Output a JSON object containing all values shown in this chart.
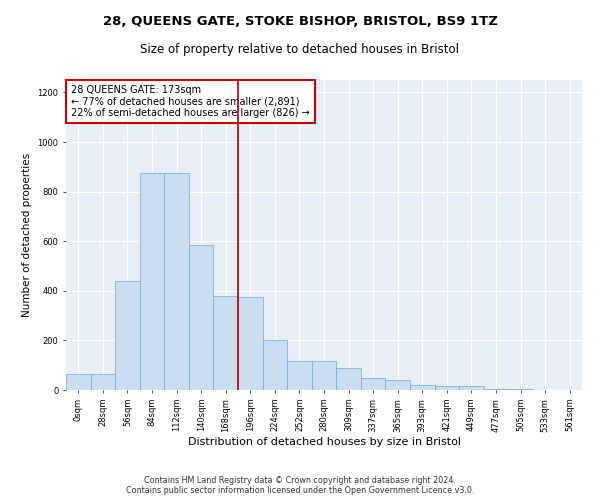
{
  "title": "28, QUEENS GATE, STOKE BISHOP, BRISTOL, BS9 1TZ",
  "subtitle": "Size of property relative to detached houses in Bristol",
  "xlabel": "Distribution of detached houses by size in Bristol",
  "ylabel": "Number of detached properties",
  "categories": [
    "0sqm",
    "28sqm",
    "56sqm",
    "84sqm",
    "112sqm",
    "140sqm",
    "168sqm",
    "196sqm",
    "224sqm",
    "252sqm",
    "280sqm",
    "309sqm",
    "337sqm",
    "365sqm",
    "393sqm",
    "421sqm",
    "449sqm",
    "477sqm",
    "505sqm",
    "533sqm",
    "561sqm"
  ],
  "values": [
    65,
    65,
    440,
    875,
    875,
    585,
    380,
    375,
    200,
    115,
    115,
    90,
    50,
    40,
    20,
    15,
    15,
    5,
    3,
    2,
    1
  ],
  "bar_color": "#ccddf0",
  "bar_edge_color": "#6aaad4",
  "bar_width": 1.0,
  "vline_x": 6.5,
  "vline_color": "#aa0000",
  "annotation_text": "28 QUEENS GATE: 173sqm\n← 77% of detached houses are smaller (2,891)\n22% of semi-detached houses are larger (826) →",
  "annotation_box_color": "#ffffff",
  "annotation_box_edge": "#cc0000",
  "ylim": [
    0,
    1250
  ],
  "yticks": [
    0,
    200,
    400,
    600,
    800,
    1000,
    1200
  ],
  "fig_background": "#ffffff",
  "plot_background": "#e8eef5",
  "grid_color": "#ffffff",
  "footer_line1": "Contains HM Land Registry data © Crown copyright and database right 2024.",
  "footer_line2": "Contains public sector information licensed under the Open Government Licence v3.0.",
  "title_fontsize": 9.5,
  "subtitle_fontsize": 8.5,
  "xlabel_fontsize": 8,
  "ylabel_fontsize": 7.5,
  "tick_fontsize": 6,
  "annotation_fontsize": 7,
  "footer_fontsize": 5.8
}
